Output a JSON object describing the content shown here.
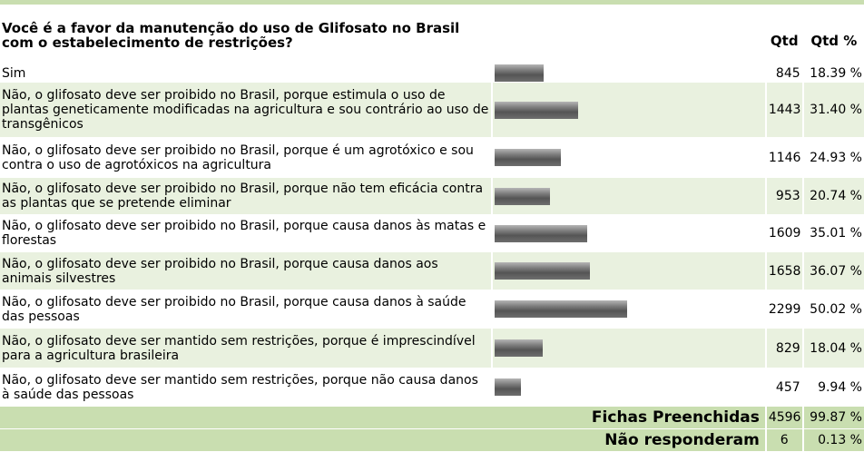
{
  "question": "Você é a favor da manutenção do uso de Glifosato no Brasil com o estabelecimento de restrições?",
  "headers": {
    "qtd": "Qtd",
    "qtd_pct": "Qtd %"
  },
  "colors": {
    "row_alt": "#e9f1df",
    "footer": "#c9deb0",
    "bar": "#6a6a6a"
  },
  "chart_data": {
    "type": "bar",
    "orientation": "horizontal",
    "title": "Você é a favor da manutenção do uso de Glifosato no Brasil com o estabelecimento de restrições?",
    "categories": [
      "Sim",
      "Não, o glifosato deve ser proibido no Brasil, porque estimula o uso de plantas geneticamente modificadas na agricultura e sou contrário ao uso de transgênicos",
      "Não, o glifosato deve ser proibido no Brasil, porque é um agrotóxico e sou contra o uso de agrotóxicos na agricultura",
      "Não, o glifosato deve ser proibido no Brasil, porque não tem eficácia contra as plantas que se pretende eliminar",
      "Não, o glifosato deve ser proibido no Brasil, porque causa danos às matas e florestas",
      "Não, o glifosato deve ser proibido no Brasil, porque causa danos aos animais silvestres",
      "Não, o glifosato deve ser proibido no Brasil, porque causa danos à saúde das pessoas",
      "Não, o glifosato deve ser mantido sem restrições, porque é imprescindível para a agricultura brasileira",
      "Não, o glifosato deve ser mantido sem restrições, porque não causa danos à saúde das pessoas"
    ],
    "values": [
      845,
      1443,
      1146,
      953,
      1609,
      1658,
      2299,
      829,
      457
    ],
    "percents": [
      "18.39 %",
      "31.40 %",
      "24.93 %",
      "20.74 %",
      "35.01 %",
      "36.07 %",
      "50.02 %",
      "18.04 %",
      "9.94 %"
    ],
    "xlim": [
      0,
      4596
    ]
  },
  "footer": [
    {
      "label": "Fichas Preenchidas",
      "qtd": "4596",
      "pct": "99.87 %"
    },
    {
      "label": "Não responderam",
      "qtd": "6",
      "pct": "0.13 %"
    }
  ]
}
